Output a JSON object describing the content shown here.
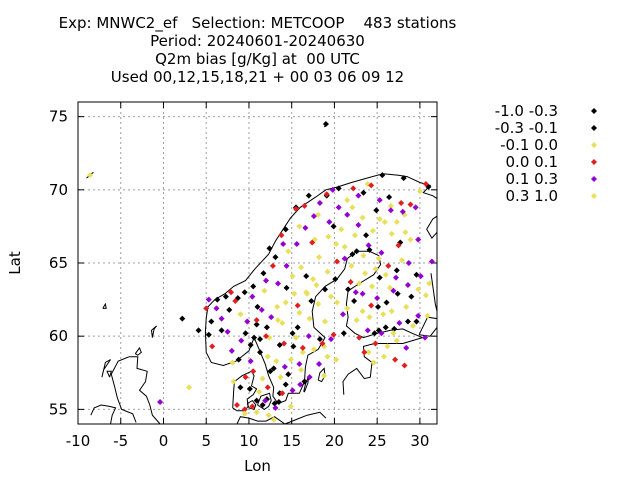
{
  "chart_data": {
    "type": "scatter",
    "title": [
      "Exp: MNWC2_ef   Selection: METCOOP    483 stations",
      "Period: 20240601-20240630",
      "Q2m bias [g/Kg] at  00 UTC",
      "Used 00,12,15,18,21 + 00 03 06 09 12"
    ],
    "xlabel": "Lon",
    "ylabel": "Lat",
    "xlim": [
      -10,
      32
    ],
    "ylim": [
      54,
      76
    ],
    "xticks": [
      "-10",
      "-5",
      "0",
      "5",
      "10",
      "15",
      "20",
      "25",
      "30"
    ],
    "yticks": [
      "55",
      "60",
      "65",
      "70",
      "75"
    ],
    "grid": true,
    "legend_position": "right",
    "series": [
      {
        "name": "-1.0 -0.3",
        "color": "#000000",
        "points": [
          [
            19.0,
            74.5
          ],
          [
            12.4,
            66.0
          ],
          [
            15.5,
            68.8
          ],
          [
            5.6,
            61.0
          ],
          [
            6.8,
            60.4
          ],
          [
            7.7,
            61.8
          ],
          [
            9.6,
            60.2
          ],
          [
            10.2,
            59.4
          ],
          [
            10.9,
            60.8
          ],
          [
            11.3,
            59.8
          ],
          [
            9.0,
            56.5
          ],
          [
            10.1,
            56.4
          ],
          [
            10.9,
            55.6
          ],
          [
            11.6,
            55.3
          ],
          [
            12.1,
            55.7
          ],
          [
            13.0,
            55.4
          ],
          [
            13.6,
            56.1
          ],
          [
            14.6,
            57.4
          ],
          [
            12.9,
            57.8
          ],
          [
            13.6,
            59.4
          ],
          [
            15.1,
            60.2
          ],
          [
            14.4,
            63.3
          ],
          [
            16.7,
            64.1
          ],
          [
            17.3,
            62.4
          ],
          [
            20.1,
            63.9
          ],
          [
            21.6,
            63.2
          ],
          [
            22.6,
            65.8
          ],
          [
            24.1,
            65.9
          ],
          [
            25.3,
            64.0
          ],
          [
            26.1,
            62.3
          ],
          [
            27.4,
            62.9
          ],
          [
            24.7,
            60.2
          ],
          [
            25.2,
            60.4
          ],
          [
            27.0,
            60.5
          ],
          [
            28.6,
            61.0
          ],
          [
            29.6,
            61.0
          ],
          [
            29.0,
            62.7
          ],
          [
            28.1,
            70.8
          ],
          [
            25.6,
            71.0
          ],
          [
            23.4,
            69.8
          ],
          [
            19.1,
            69.6
          ],
          [
            14.3,
            67.3
          ],
          [
            11.7,
            64.3
          ],
          [
            8.7,
            62.6
          ],
          [
            10.5,
            63.4
          ]
        ]
      },
      {
        "name": "-0.3 -0.1",
        "color": "#000000",
        "points": [
          [
            4.1,
            60.4
          ],
          [
            5.3,
            60.1
          ],
          [
            6.3,
            62.5
          ],
          [
            8.8,
            58.4
          ],
          [
            10.6,
            59.9
          ],
          [
            11.0,
            62.0
          ],
          [
            12.5,
            57.6
          ],
          [
            13.5,
            55.5
          ],
          [
            14.3,
            56.7
          ],
          [
            15.2,
            59.3
          ],
          [
            16.5,
            56.9
          ],
          [
            18.3,
            59.8
          ],
          [
            18.9,
            63.2
          ],
          [
            22.1,
            65.6
          ],
          [
            23.7,
            66.9
          ],
          [
            25.1,
            62.0
          ],
          [
            26.0,
            60.6
          ],
          [
            27.3,
            64.5
          ],
          [
            29.6,
            64.2
          ],
          [
            31.0,
            70.2
          ],
          [
            26.4,
            69.5
          ],
          [
            20.5,
            70.1
          ],
          [
            17.0,
            69.6
          ],
          [
            13.1,
            65.4
          ],
          [
            9.5,
            63.0
          ],
          [
            7.3,
            62.7
          ],
          [
            2.2,
            61.2
          ],
          [
            11.3,
            58.9
          ],
          [
            12.1,
            60.6
          ],
          [
            15.7,
            60.6
          ],
          [
            21.1,
            60.2
          ],
          [
            22.3,
            62.4
          ],
          [
            19.9,
            67.5
          ],
          [
            24.9,
            68.6
          ],
          [
            27.7,
            66.4
          ]
        ]
      },
      {
        "name": "-0.1 0.0",
        "color": "#e8e05a",
        "points": [
          [
            -8.6,
            71.0
          ],
          [
            3.0,
            56.5
          ],
          [
            8.2,
            56.9
          ],
          [
            11.6,
            57.1
          ],
          [
            13.2,
            58.3
          ],
          [
            14.9,
            58.4
          ],
          [
            16.3,
            58.9
          ],
          [
            17.6,
            59.1
          ],
          [
            18.8,
            59.3
          ],
          [
            20.2,
            58.4
          ],
          [
            12.4,
            59.9
          ],
          [
            13.9,
            60.9
          ],
          [
            14.3,
            62.3
          ],
          [
            15.9,
            61.6
          ],
          [
            16.8,
            62.9
          ],
          [
            17.9,
            63.5
          ],
          [
            19.2,
            64.4
          ],
          [
            18.2,
            65.4
          ],
          [
            19.3,
            66.8
          ],
          [
            20.8,
            67.3
          ],
          [
            22.4,
            66.9
          ],
          [
            23.3,
            68.1
          ],
          [
            24.5,
            67.2
          ],
          [
            25.3,
            68.0
          ],
          [
            26.6,
            68.9
          ],
          [
            27.3,
            67.8
          ],
          [
            28.2,
            68.3
          ],
          [
            28.9,
            66.6
          ],
          [
            27.9,
            65.2
          ],
          [
            26.0,
            64.2
          ],
          [
            25.2,
            65.3
          ],
          [
            23.6,
            64.3
          ],
          [
            22.0,
            64.8
          ],
          [
            21.5,
            61.9
          ],
          [
            22.6,
            61.1
          ],
          [
            24.1,
            61.3
          ],
          [
            25.7,
            61.5
          ],
          [
            26.7,
            61.7
          ],
          [
            28.4,
            62.0
          ],
          [
            30.7,
            62.8
          ],
          [
            31.1,
            63.6
          ],
          [
            26.5,
            63.3
          ],
          [
            24.4,
            63.4
          ],
          [
            20.3,
            62.3
          ],
          [
            18.9,
            61.0
          ],
          [
            17.1,
            61.2
          ],
          [
            15.3,
            62.9
          ],
          [
            16.1,
            64.7
          ],
          [
            17.7,
            66.6
          ],
          [
            14.6,
            65.8
          ],
          [
            15.9,
            67.5
          ],
          [
            18.1,
            68.3
          ],
          [
            21.5,
            69.3
          ],
          [
            23.9,
            70.4
          ],
          [
            30.0,
            69.9
          ],
          [
            8.1,
            58.2
          ],
          [
            10.9,
            54.8
          ],
          [
            12.3,
            54.6
          ],
          [
            14.9,
            55.2
          ],
          [
            16.1,
            57.7
          ],
          [
            9.0,
            61.5
          ],
          [
            11.8,
            63.1
          ],
          [
            13.3,
            62.0
          ],
          [
            18.8,
            57.3
          ],
          [
            24.0,
            58.9
          ],
          [
            26.2,
            59.3
          ],
          [
            27.3,
            59.7
          ],
          [
            29.2,
            60.7
          ]
        ]
      },
      {
        "name": "0.0 0.1",
        "color": "#e02020",
        "points": [
          [
            5.0,
            61.9
          ],
          [
            5.7,
            59.3
          ],
          [
            7.9,
            63.0
          ],
          [
            8.4,
            62.4
          ],
          [
            10.9,
            61.1
          ],
          [
            12.0,
            60.0
          ],
          [
            9.6,
            57.2
          ],
          [
            10.5,
            57.6
          ],
          [
            12.2,
            56.5
          ],
          [
            13.9,
            56.1
          ],
          [
            8.6,
            55.3
          ],
          [
            9.5,
            55.0
          ],
          [
            10.4,
            55.2
          ],
          [
            14.1,
            59.5
          ],
          [
            16.3,
            59.2
          ],
          [
            15.7,
            62.1
          ],
          [
            17.4,
            66.4
          ],
          [
            15.5,
            68.7
          ],
          [
            16.5,
            68.9
          ],
          [
            19.1,
            69.7
          ],
          [
            22.2,
            70.1
          ],
          [
            24.3,
            70.3
          ],
          [
            27.8,
            69.1
          ],
          [
            30.7,
            70.4
          ],
          [
            28.9,
            69.0
          ],
          [
            27.5,
            66.2
          ],
          [
            26.3,
            64.8
          ],
          [
            24.3,
            62.1
          ],
          [
            22.9,
            59.9
          ],
          [
            23.5,
            58.9
          ],
          [
            27.1,
            58.4
          ],
          [
            28.2,
            58.0
          ],
          [
            24.8,
            59.5
          ],
          [
            19.9,
            60.1
          ],
          [
            18.6,
            59.5
          ],
          [
            12.8,
            64.8
          ],
          [
            13.8,
            66.9
          ],
          [
            20.3,
            65.1
          ],
          [
            21.9,
            63.7
          ]
        ]
      },
      {
        "name": "0.1 0.3",
        "color": "#9400d3",
        "points": [
          [
            -0.4,
            55.5
          ],
          [
            5.3,
            62.5
          ],
          [
            6.2,
            61.9
          ],
          [
            6.8,
            61.2
          ],
          [
            7.5,
            60.3
          ],
          [
            8.0,
            59.0
          ],
          [
            9.1,
            59.7
          ],
          [
            9.8,
            61.0
          ],
          [
            11.5,
            61.8
          ],
          [
            12.6,
            61.3
          ],
          [
            13.4,
            63.6
          ],
          [
            14.4,
            64.8
          ],
          [
            15.6,
            66.3
          ],
          [
            16.6,
            67.4
          ],
          [
            17.6,
            68.2
          ],
          [
            19.4,
            67.8
          ],
          [
            20.5,
            68.8
          ],
          [
            21.5,
            68.3
          ],
          [
            22.8,
            67.6
          ],
          [
            24.0,
            66.2
          ],
          [
            25.5,
            65.7
          ],
          [
            27.2,
            64.0
          ],
          [
            28.7,
            65.0
          ],
          [
            29.8,
            66.6
          ],
          [
            30.1,
            64.1
          ],
          [
            28.6,
            63.5
          ],
          [
            26.9,
            63.1
          ],
          [
            25.0,
            62.6
          ],
          [
            23.3,
            62.9
          ],
          [
            22.5,
            63.0
          ],
          [
            21.2,
            65.3
          ],
          [
            21.0,
            61.5
          ],
          [
            19.6,
            59.8
          ],
          [
            18.2,
            58.1
          ],
          [
            17.1,
            57.2
          ],
          [
            16.0,
            56.7
          ],
          [
            15.1,
            56.3
          ],
          [
            13.1,
            55.1
          ],
          [
            11.9,
            55.6
          ],
          [
            10.2,
            58.3
          ],
          [
            14.2,
            57.9
          ],
          [
            15.9,
            58.1
          ],
          [
            17.0,
            60.0
          ],
          [
            23.9,
            60.4
          ],
          [
            25.5,
            60.2
          ],
          [
            27.6,
            60.9
          ],
          [
            29.8,
            61.4
          ],
          [
            28.4,
            59.2
          ],
          [
            30.6,
            59.9
          ],
          [
            12.0,
            63.8
          ],
          [
            14.0,
            66.3
          ],
          [
            18.3,
            69.1
          ],
          [
            19.8,
            70.0
          ],
          [
            22.8,
            69.6
          ],
          [
            25.3,
            69.3
          ],
          [
            26.6,
            68.6
          ],
          [
            28.0,
            68.5
          ],
          [
            29.5,
            68.8
          ],
          [
            31.4,
            65.1
          ],
          [
            10.4,
            62.7
          ]
        ]
      },
      {
        "name": "0.3 1.0",
        "color": "#e8e05a",
        "points": [
          [
            16.7,
            63.0
          ],
          [
            20.2,
            66.3
          ],
          [
            23.4,
            65.5
          ],
          [
            24.8,
            64.6
          ],
          [
            26.7,
            67.0
          ],
          [
            25.9,
            67.8
          ],
          [
            28.3,
            67.1
          ],
          [
            22.1,
            68.8
          ],
          [
            19.6,
            62.7
          ],
          [
            18.1,
            62.2
          ],
          [
            17.5,
            63.9
          ],
          [
            15.1,
            64.1
          ],
          [
            21.2,
            66.1
          ],
          [
            22.9,
            63.6
          ],
          [
            24.6,
            58.2
          ],
          [
            25.8,
            58.6
          ],
          [
            13.4,
            61.1
          ],
          [
            12.2,
            58.6
          ],
          [
            13.7,
            57.2
          ],
          [
            11.2,
            56.2
          ],
          [
            9.5,
            54.7
          ],
          [
            12.9,
            54.3
          ],
          [
            15.5,
            59.9
          ],
          [
            19.2,
            58.6
          ],
          [
            23.3,
            61.7
          ],
          [
            29.8,
            63.2
          ],
          [
            30.9,
            61.4
          ],
          [
            26.9,
            60.2
          ]
        ]
      }
    ]
  }
}
